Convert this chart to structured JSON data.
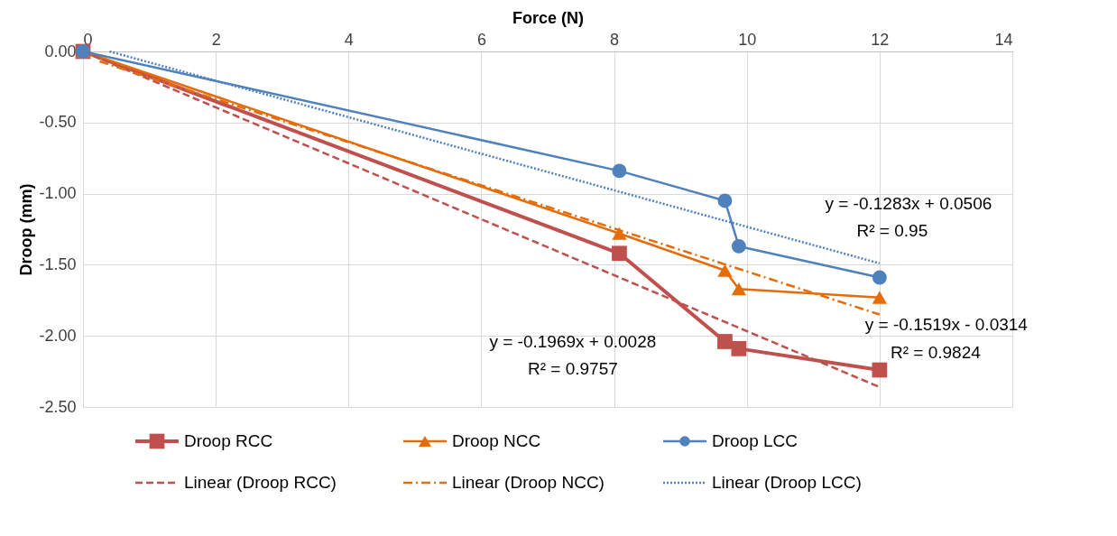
{
  "chart_data": {
    "type": "line",
    "xlabel": "Force (N)",
    "ylabel": "Droop (mm)",
    "xlim": [
      0,
      14
    ],
    "xticks": [
      0,
      2,
      4,
      6,
      8,
      10,
      12,
      14
    ],
    "ylim": [
      -2.5,
      0
    ],
    "yticks": [
      {
        "value": 0,
        "label": "0.00"
      },
      {
        "value": -0.5,
        "label": "-0.50"
      },
      {
        "value": -1,
        "label": "-1.00"
      },
      {
        "value": -1.5,
        "label": "-1.50"
      },
      {
        "value": -2,
        "label": "-2.00"
      },
      {
        "value": -2.5,
        "label": "-2.50"
      }
    ],
    "grid": true,
    "legend": "bottom",
    "series": [
      {
        "name": "Droop RCC",
        "color": "#c0504d",
        "marker": "square",
        "line_style": "solid",
        "x": [
          0,
          8.08,
          9.67,
          9.88,
          12
        ],
        "values": [
          0,
          -1.42,
          -2.04,
          -2.09,
          -2.24
        ]
      },
      {
        "name": "Droop NCC",
        "color": "#e46c0a",
        "marker": "triangle",
        "line_style": "solid",
        "x": [
          0,
          8.08,
          9.67,
          9.88,
          12
        ],
        "values": [
          0,
          -1.28,
          -1.54,
          -1.67,
          -1.73
        ]
      },
      {
        "name": "Droop LCC",
        "color": "#4f81bd",
        "marker": "circle",
        "line_style": "solid",
        "x": [
          0,
          8.08,
          9.67,
          9.88,
          12
        ],
        "values": [
          0,
          -0.84,
          -1.05,
          -1.37,
          -1.59
        ]
      },
      {
        "name": "Linear (Droop RCC)",
        "color": "#c0504d",
        "line_style": "dashed",
        "x": [
          0,
          12
        ],
        "values": [
          0,
          -2.36
        ]
      },
      {
        "name": "Linear (Droop NCC)",
        "color": "#e46c0a",
        "line_style": "dashdot",
        "x": [
          0.25,
          12
        ],
        "values": [
          -0.07,
          -1.85
        ]
      },
      {
        "name": "Linear (Droop LCC)",
        "color": "#4f81bd",
        "line_style": "dotted",
        "x": [
          0.4,
          12
        ],
        "values": [
          0,
          -1.49
        ]
      }
    ],
    "annotations": [
      "y = -0.1283x + 0.0506",
      "R² = 0.95",
      "y = -0.1519x - 0.0314",
      "R² = 0.9824",
      "y = -0.1969x + 0.0028",
      "R² = 0.9757"
    ]
  }
}
